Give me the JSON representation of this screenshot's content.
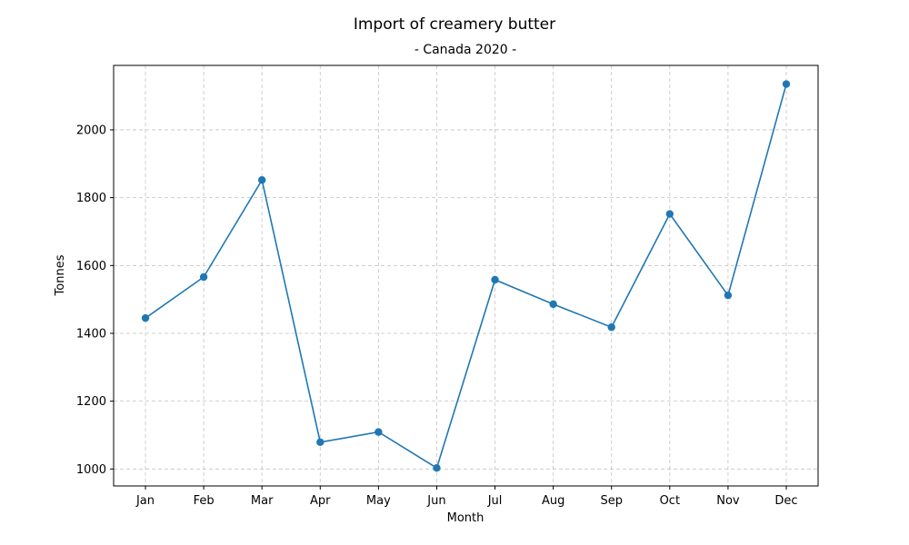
{
  "chart_data": {
    "type": "line",
    "title": "Import of creamery butter",
    "subtitle": "- Canada 2020 -",
    "xlabel": "Month",
    "ylabel": "Tonnes",
    "categories": [
      "Jan",
      "Feb",
      "Mar",
      "Apr",
      "May",
      "Jun",
      "Jul",
      "Aug",
      "Sep",
      "Oct",
      "Nov",
      "Dec"
    ],
    "series": [
      {
        "values": [
          1445,
          1566,
          1852,
          1079,
          1109,
          1003,
          1558,
          1486,
          1418,
          1752,
          1512,
          2135
        ],
        "color": "#1f77b4"
      }
    ],
    "ylim": [
      950,
      2190
    ],
    "yticks": [
      1000,
      1200,
      1400,
      1600,
      1800,
      2000
    ],
    "grid": true,
    "marker": "circle"
  }
}
